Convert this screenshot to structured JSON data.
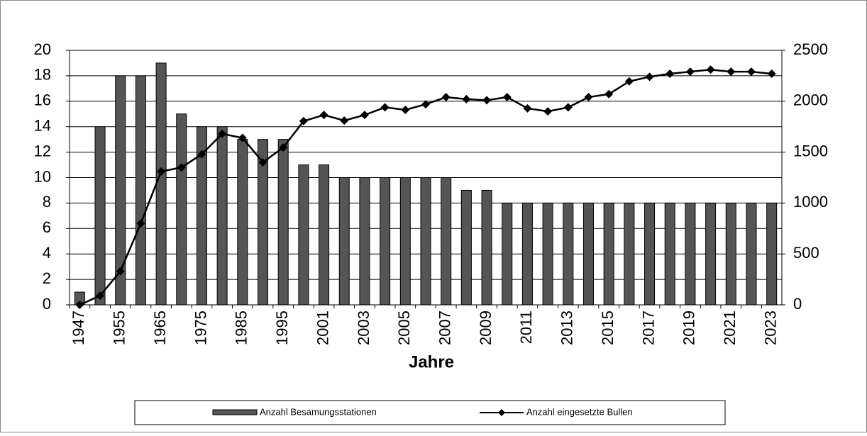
{
  "chart_data": {
    "type": "bar_line",
    "x_label": "Jahre",
    "categories": [
      "1947",
      null,
      "1955",
      null,
      "1965",
      null,
      "1975",
      null,
      "1985",
      null,
      "1995",
      null,
      "2001",
      null,
      "2003",
      null,
      "2005",
      null,
      "2007",
      null,
      "2009",
      null,
      "2011",
      null,
      "2013",
      null,
      "2015",
      null,
      "2017",
      null,
      "2019",
      null,
      "2021",
      null,
      "2023"
    ],
    "series": [
      {
        "name": "Anzahl Besamungsstationen",
        "color": "#555555",
        "type": "bar",
        "values": [
          1,
          14,
          18,
          18,
          19,
          15,
          14,
          14,
          13,
          13,
          13,
          11,
          11,
          10,
          10,
          10,
          10,
          10,
          10,
          9,
          9,
          8,
          8,
          8,
          8,
          8,
          8,
          8,
          8,
          8,
          8,
          8,
          8,
          8,
          8
        ]
      },
      {
        "name": "Anzahl eingesetzte Bullen",
        "color": "#000000",
        "type": "line",
        "axis": "y2",
        "values": [
          0,
          90,
          330,
          800,
          1310,
          1350,
          1480,
          1680,
          1640,
          1400,
          1545,
          1805,
          1865,
          1810,
          1865,
          1940,
          1915,
          1970,
          2040,
          2020,
          2010,
          2040,
          1930,
          1900,
          1940,
          2040,
          2070,
          2195,
          2240,
          2270,
          2290,
          2310,
          2290,
          2290,
          2270
        ]
      }
    ],
    "ylim": [
      0,
      20
    ],
    "yticks": [
      0,
      2,
      4,
      6,
      8,
      10,
      12,
      14,
      16,
      18,
      20
    ],
    "y2lim": [
      0,
      2500
    ],
    "y2ticks": [
      0,
      500,
      1000,
      1500,
      2000,
      2500
    ],
    "grid": true,
    "legend": "bottom"
  }
}
